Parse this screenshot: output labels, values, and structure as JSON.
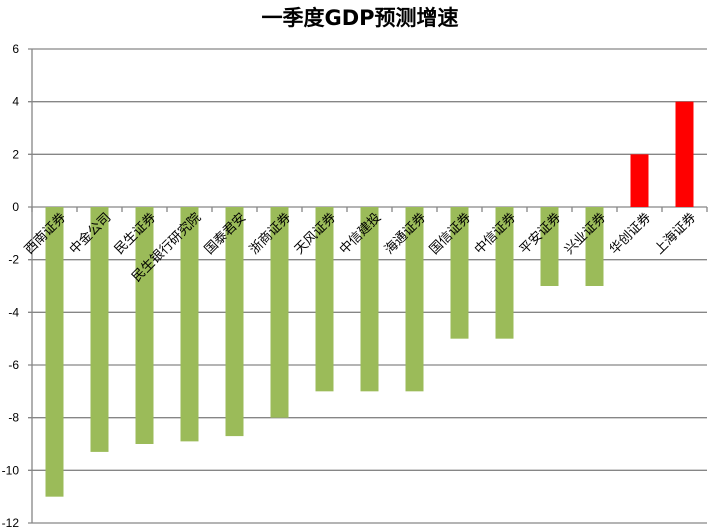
{
  "chart_data": {
    "type": "bar",
    "title": "一季度GDP预测增速",
    "categories": [
      "西南证券",
      "中金公司",
      "民生证券",
      "民生银行研究院",
      "国泰君安",
      "浙商证券",
      "天风证券",
      "中信建投",
      "海通证券",
      "国信证券",
      "中信证券",
      "平安证券",
      "兴业证券",
      "华创证券",
      "上海证券"
    ],
    "values": [
      -11,
      -9.3,
      -9,
      -8.9,
      -8.7,
      -8,
      -7,
      -7,
      -7,
      -5,
      -5,
      -3,
      -3,
      2,
      4
    ],
    "ylim": [
      -12,
      6
    ],
    "yticks": [
      6,
      4,
      2,
      0,
      -2,
      -4,
      -6,
      -8,
      -10,
      -12
    ],
    "grid": true,
    "legend": "none",
    "colors": {
      "negative": "#9BBB59",
      "positive": "#FF0000",
      "grid": "#868686"
    }
  }
}
